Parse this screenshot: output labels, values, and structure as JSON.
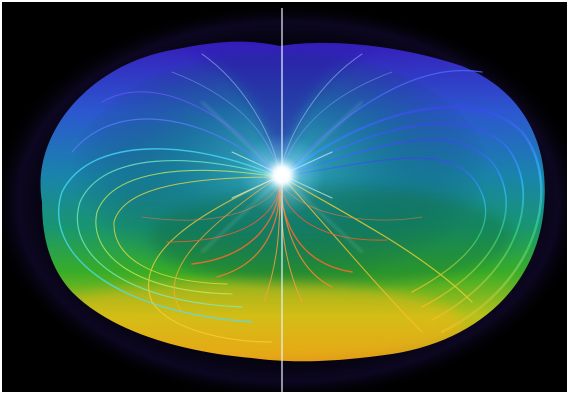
{
  "image": {
    "subject": "rainbow-torus-magnetic-field",
    "palette": {
      "background": "#000000",
      "top": "#3a2fd0",
      "upper": "#2a7fe0",
      "middle": "#1aa79a",
      "lower": "#2fbf3a",
      "bottom": "#f0d01a",
      "inner_lines": "#ff6a2a",
      "core": "#ffffff"
    }
  }
}
